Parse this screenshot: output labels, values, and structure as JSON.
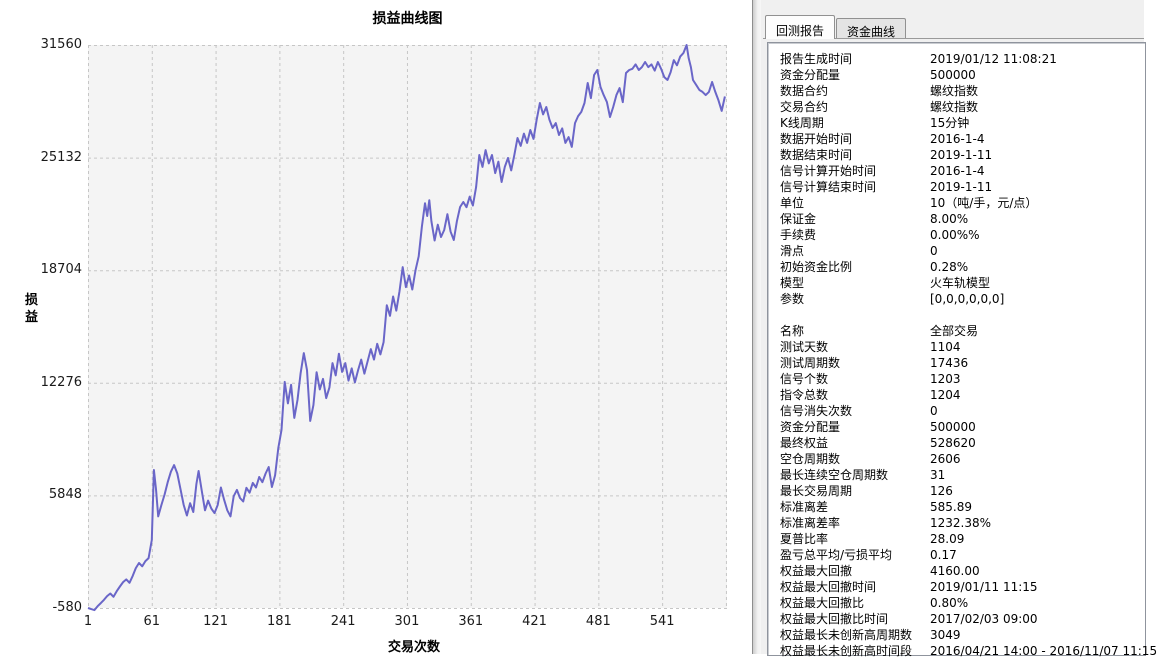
{
  "chart": {
    "title": "损益曲线图",
    "y_axis_title": "损益",
    "x_axis_title": "交易次数",
    "x_ticks": [
      1,
      61,
      121,
      181,
      241,
      301,
      361,
      421,
      481,
      541
    ],
    "y_ticks": [
      31560,
      25132,
      18704,
      12276,
      5848,
      -580
    ],
    "line_color": "#6a66c8",
    "plot_bg": "#f4f4f4",
    "grid_color": "#c6c6c6"
  },
  "chart_data": {
    "type": "line",
    "title": "损益曲线图",
    "xlabel": "交易次数",
    "ylabel": "损益",
    "xlim": [
      1,
      602
    ],
    "ylim": [
      -580,
      31560
    ],
    "grid": true,
    "legend_position": "none",
    "x_tick_labels": [
      1,
      61,
      121,
      181,
      241,
      301,
      361,
      421,
      481,
      541
    ],
    "y_tick_labels": [
      31560,
      25132,
      18704,
      12276,
      5848,
      -580
    ],
    "series": [
      {
        "name": "损益",
        "color": "#6a66c8",
        "points": [
          [
            1,
            -580
          ],
          [
            4,
            -640
          ],
          [
            7,
            -700
          ],
          [
            10,
            -480
          ],
          [
            13,
            -300
          ],
          [
            16,
            -120
          ],
          [
            19,
            100
          ],
          [
            22,
            250
          ],
          [
            25,
            60
          ],
          [
            28,
            380
          ],
          [
            31,
            650
          ],
          [
            34,
            900
          ],
          [
            37,
            1050
          ],
          [
            40,
            860
          ],
          [
            43,
            1250
          ],
          [
            46,
            1700
          ],
          [
            49,
            1990
          ],
          [
            52,
            1800
          ],
          [
            55,
            2100
          ],
          [
            58,
            2270
          ],
          [
            61,
            3300
          ],
          [
            63,
            7300
          ],
          [
            65,
            6200
          ],
          [
            67,
            4650
          ],
          [
            70,
            5300
          ],
          [
            73,
            5900
          ],
          [
            76,
            6600
          ],
          [
            79,
            7200
          ],
          [
            82,
            7580
          ],
          [
            85,
            7100
          ],
          [
            88,
            6200
          ],
          [
            91,
            5300
          ],
          [
            94,
            4700
          ],
          [
            97,
            5400
          ],
          [
            100,
            4900
          ],
          [
            103,
            6500
          ],
          [
            105,
            7240
          ],
          [
            108,
            6100
          ],
          [
            111,
            5000
          ],
          [
            114,
            5550
          ],
          [
            117,
            5100
          ],
          [
            120,
            4840
          ],
          [
            123,
            5300
          ],
          [
            126,
            6300
          ],
          [
            129,
            5600
          ],
          [
            132,
            5000
          ],
          [
            135,
            4650
          ],
          [
            138,
            5800
          ],
          [
            141,
            6160
          ],
          [
            144,
            5700
          ],
          [
            147,
            5500
          ],
          [
            150,
            6280
          ],
          [
            153,
            6000
          ],
          [
            156,
            6560
          ],
          [
            159,
            6300
          ],
          [
            162,
            6900
          ],
          [
            165,
            6600
          ],
          [
            168,
            7100
          ],
          [
            171,
            7470
          ],
          [
            174,
            6330
          ],
          [
            177,
            7000
          ],
          [
            180,
            8550
          ],
          [
            183,
            9580
          ],
          [
            186,
            12330
          ],
          [
            189,
            11100
          ],
          [
            192,
            12160
          ],
          [
            195,
            10270
          ],
          [
            198,
            11300
          ],
          [
            201,
            12820
          ],
          [
            204,
            13970
          ],
          [
            207,
            13000
          ],
          [
            210,
            10100
          ],
          [
            213,
            11000
          ],
          [
            216,
            12880
          ],
          [
            219,
            11900
          ],
          [
            222,
            12500
          ],
          [
            225,
            11400
          ],
          [
            228,
            12000
          ],
          [
            231,
            13400
          ],
          [
            234,
            12700
          ],
          [
            237,
            13940
          ],
          [
            240,
            12900
          ],
          [
            243,
            13400
          ],
          [
            246,
            12400
          ],
          [
            249,
            13100
          ],
          [
            252,
            12300
          ],
          [
            255,
            13000
          ],
          [
            258,
            13600
          ],
          [
            261,
            12800
          ],
          [
            264,
            13500
          ],
          [
            267,
            14200
          ],
          [
            270,
            13600
          ],
          [
            273,
            14500
          ],
          [
            276,
            13900
          ],
          [
            279,
            14600
          ],
          [
            282,
            16700
          ],
          [
            285,
            16100
          ],
          [
            288,
            17200
          ],
          [
            291,
            16400
          ],
          [
            294,
            17500
          ],
          [
            297,
            18880
          ],
          [
            300,
            17740
          ],
          [
            303,
            18400
          ],
          [
            306,
            17600
          ],
          [
            309,
            18700
          ],
          [
            312,
            19500
          ],
          [
            315,
            21200
          ],
          [
            318,
            22530
          ],
          [
            320,
            21800
          ],
          [
            322,
            22700
          ],
          [
            324,
            21500
          ],
          [
            327,
            20400
          ],
          [
            330,
            21300
          ],
          [
            333,
            20600
          ],
          [
            336,
            21000
          ],
          [
            339,
            21900
          ],
          [
            342,
            20900
          ],
          [
            345,
            20430
          ],
          [
            348,
            21500
          ],
          [
            351,
            22310
          ],
          [
            354,
            22600
          ],
          [
            357,
            22300
          ],
          [
            360,
            22900
          ],
          [
            363,
            22400
          ],
          [
            366,
            23450
          ],
          [
            369,
            25280
          ],
          [
            372,
            24600
          ],
          [
            375,
            25560
          ],
          [
            378,
            24800
          ],
          [
            381,
            25280
          ],
          [
            384,
            24250
          ],
          [
            387,
            24900
          ],
          [
            390,
            23740
          ],
          [
            393,
            24600
          ],
          [
            396,
            25110
          ],
          [
            399,
            24400
          ],
          [
            402,
            25300
          ],
          [
            405,
            26250
          ],
          [
            408,
            25800
          ],
          [
            411,
            26500
          ],
          [
            414,
            25970
          ],
          [
            417,
            26710
          ],
          [
            420,
            26200
          ],
          [
            423,
            27300
          ],
          [
            426,
            28250
          ],
          [
            429,
            27600
          ],
          [
            432,
            28020
          ],
          [
            435,
            27300
          ],
          [
            438,
            26820
          ],
          [
            441,
            27100
          ],
          [
            444,
            26420
          ],
          [
            447,
            26800
          ],
          [
            450,
            25970
          ],
          [
            453,
            26300
          ],
          [
            456,
            25740
          ],
          [
            459,
            27100
          ],
          [
            462,
            27500
          ],
          [
            465,
            27740
          ],
          [
            468,
            28250
          ],
          [
            471,
            29390
          ],
          [
            474,
            28530
          ],
          [
            477,
            29850
          ],
          [
            480,
            30130
          ],
          [
            483,
            29160
          ],
          [
            486,
            28700
          ],
          [
            489,
            28300
          ],
          [
            492,
            27450
          ],
          [
            495,
            28020
          ],
          [
            498,
            28700
          ],
          [
            501,
            29100
          ],
          [
            504,
            28300
          ],
          [
            507,
            29960
          ],
          [
            510,
            30130
          ],
          [
            513,
            30200
          ],
          [
            516,
            30450
          ],
          [
            519,
            30130
          ],
          [
            522,
            30300
          ],
          [
            525,
            30590
          ],
          [
            528,
            30300
          ],
          [
            531,
            30450
          ],
          [
            534,
            30100
          ],
          [
            537,
            30590
          ],
          [
            540,
            30200
          ],
          [
            543,
            29730
          ],
          [
            546,
            29560
          ],
          [
            549,
            30000
          ],
          [
            552,
            30700
          ],
          [
            555,
            30400
          ],
          [
            558,
            30900
          ],
          [
            561,
            31100
          ],
          [
            564,
            31560
          ],
          [
            566,
            30800
          ],
          [
            568,
            30300
          ],
          [
            570,
            29560
          ],
          [
            573,
            29280
          ],
          [
            576,
            28990
          ],
          [
            579,
            28880
          ],
          [
            582,
            28700
          ],
          [
            585,
            28880
          ],
          [
            588,
            29450
          ],
          [
            591,
            28880
          ],
          [
            594,
            28400
          ],
          [
            597,
            27800
          ],
          [
            600,
            28620
          ]
        ]
      }
    ]
  },
  "panel": {
    "tabs": [
      {
        "label": "回测报告",
        "active": true
      },
      {
        "label": "资金曲线",
        "active": false
      }
    ],
    "report": {
      "rows": [
        {
          "label": "报告生成时间",
          "value": "2019/01/12 11:08:21"
        },
        {
          "label": "资金分配量",
          "value": "500000"
        },
        {
          "label": "数据合约",
          "value": "螺纹指数"
        },
        {
          "label": "交易合约",
          "value": "螺纹指数"
        },
        {
          "label": "K线周期",
          "value": "15分钟"
        },
        {
          "label": "数据开始时间",
          "value": "2016-1-4"
        },
        {
          "label": "数据结束时间",
          "value": "2019-1-11"
        },
        {
          "label": "信号计算开始时间",
          "value": "2016-1-4"
        },
        {
          "label": "信号计算结束时间",
          "value": "2019-1-11"
        },
        {
          "label": "单位",
          "value": "10（吨/手，元/点）"
        },
        {
          "label": "保证金",
          "value": "8.00%"
        },
        {
          "label": "手续费",
          "value": "0.00%%"
        },
        {
          "label": "滑点",
          "value": "0"
        },
        {
          "label": "初始资金比例",
          "value": "0.28%"
        },
        {
          "label": "模型",
          "value": "火车轨模型"
        },
        {
          "label": "参数",
          "value": "[0,0,0,0,0,0]"
        },
        {
          "label": "",
          "value": ""
        },
        {
          "label": "名称",
          "value": "全部交易"
        },
        {
          "label": "测试天数",
          "value": "1104"
        },
        {
          "label": "测试周期数",
          "value": "17436"
        },
        {
          "label": "信号个数",
          "value": "1203"
        },
        {
          "label": "指令总数",
          "value": "1204"
        },
        {
          "label": "信号消失次数",
          "value": "0"
        },
        {
          "label": "资金分配量",
          "value": "500000"
        },
        {
          "label": "最终权益",
          "value": "528620"
        },
        {
          "label": "空仓周期数",
          "value": "2606"
        },
        {
          "label": "最长连续空仓周期数",
          "value": "31"
        },
        {
          "label": "最长交易周期",
          "value": "126"
        },
        {
          "label": "标准离差",
          "value": "585.89"
        },
        {
          "label": "标准离差率",
          "value": "1232.38%"
        },
        {
          "label": "夏普比率",
          "value": "28.09"
        },
        {
          "label": "盈亏总平均/亏损平均",
          "value": "0.17"
        },
        {
          "label": "权益最大回撤",
          "value": "4160.00"
        },
        {
          "label": "权益最大回撤时间",
          "value": "2019/01/11 11:15"
        },
        {
          "label": "权益最大回撤比",
          "value": "0.80%"
        },
        {
          "label": "权益最大回撤比时间",
          "value": "2017/02/03 09:00"
        },
        {
          "label": "权益最长未创新高周期数",
          "value": "3049"
        },
        {
          "label": "权益最长未创新高时间段",
          "value": "2016/04/21 14:00 - 2016/11/07 11:15"
        }
      ]
    }
  }
}
